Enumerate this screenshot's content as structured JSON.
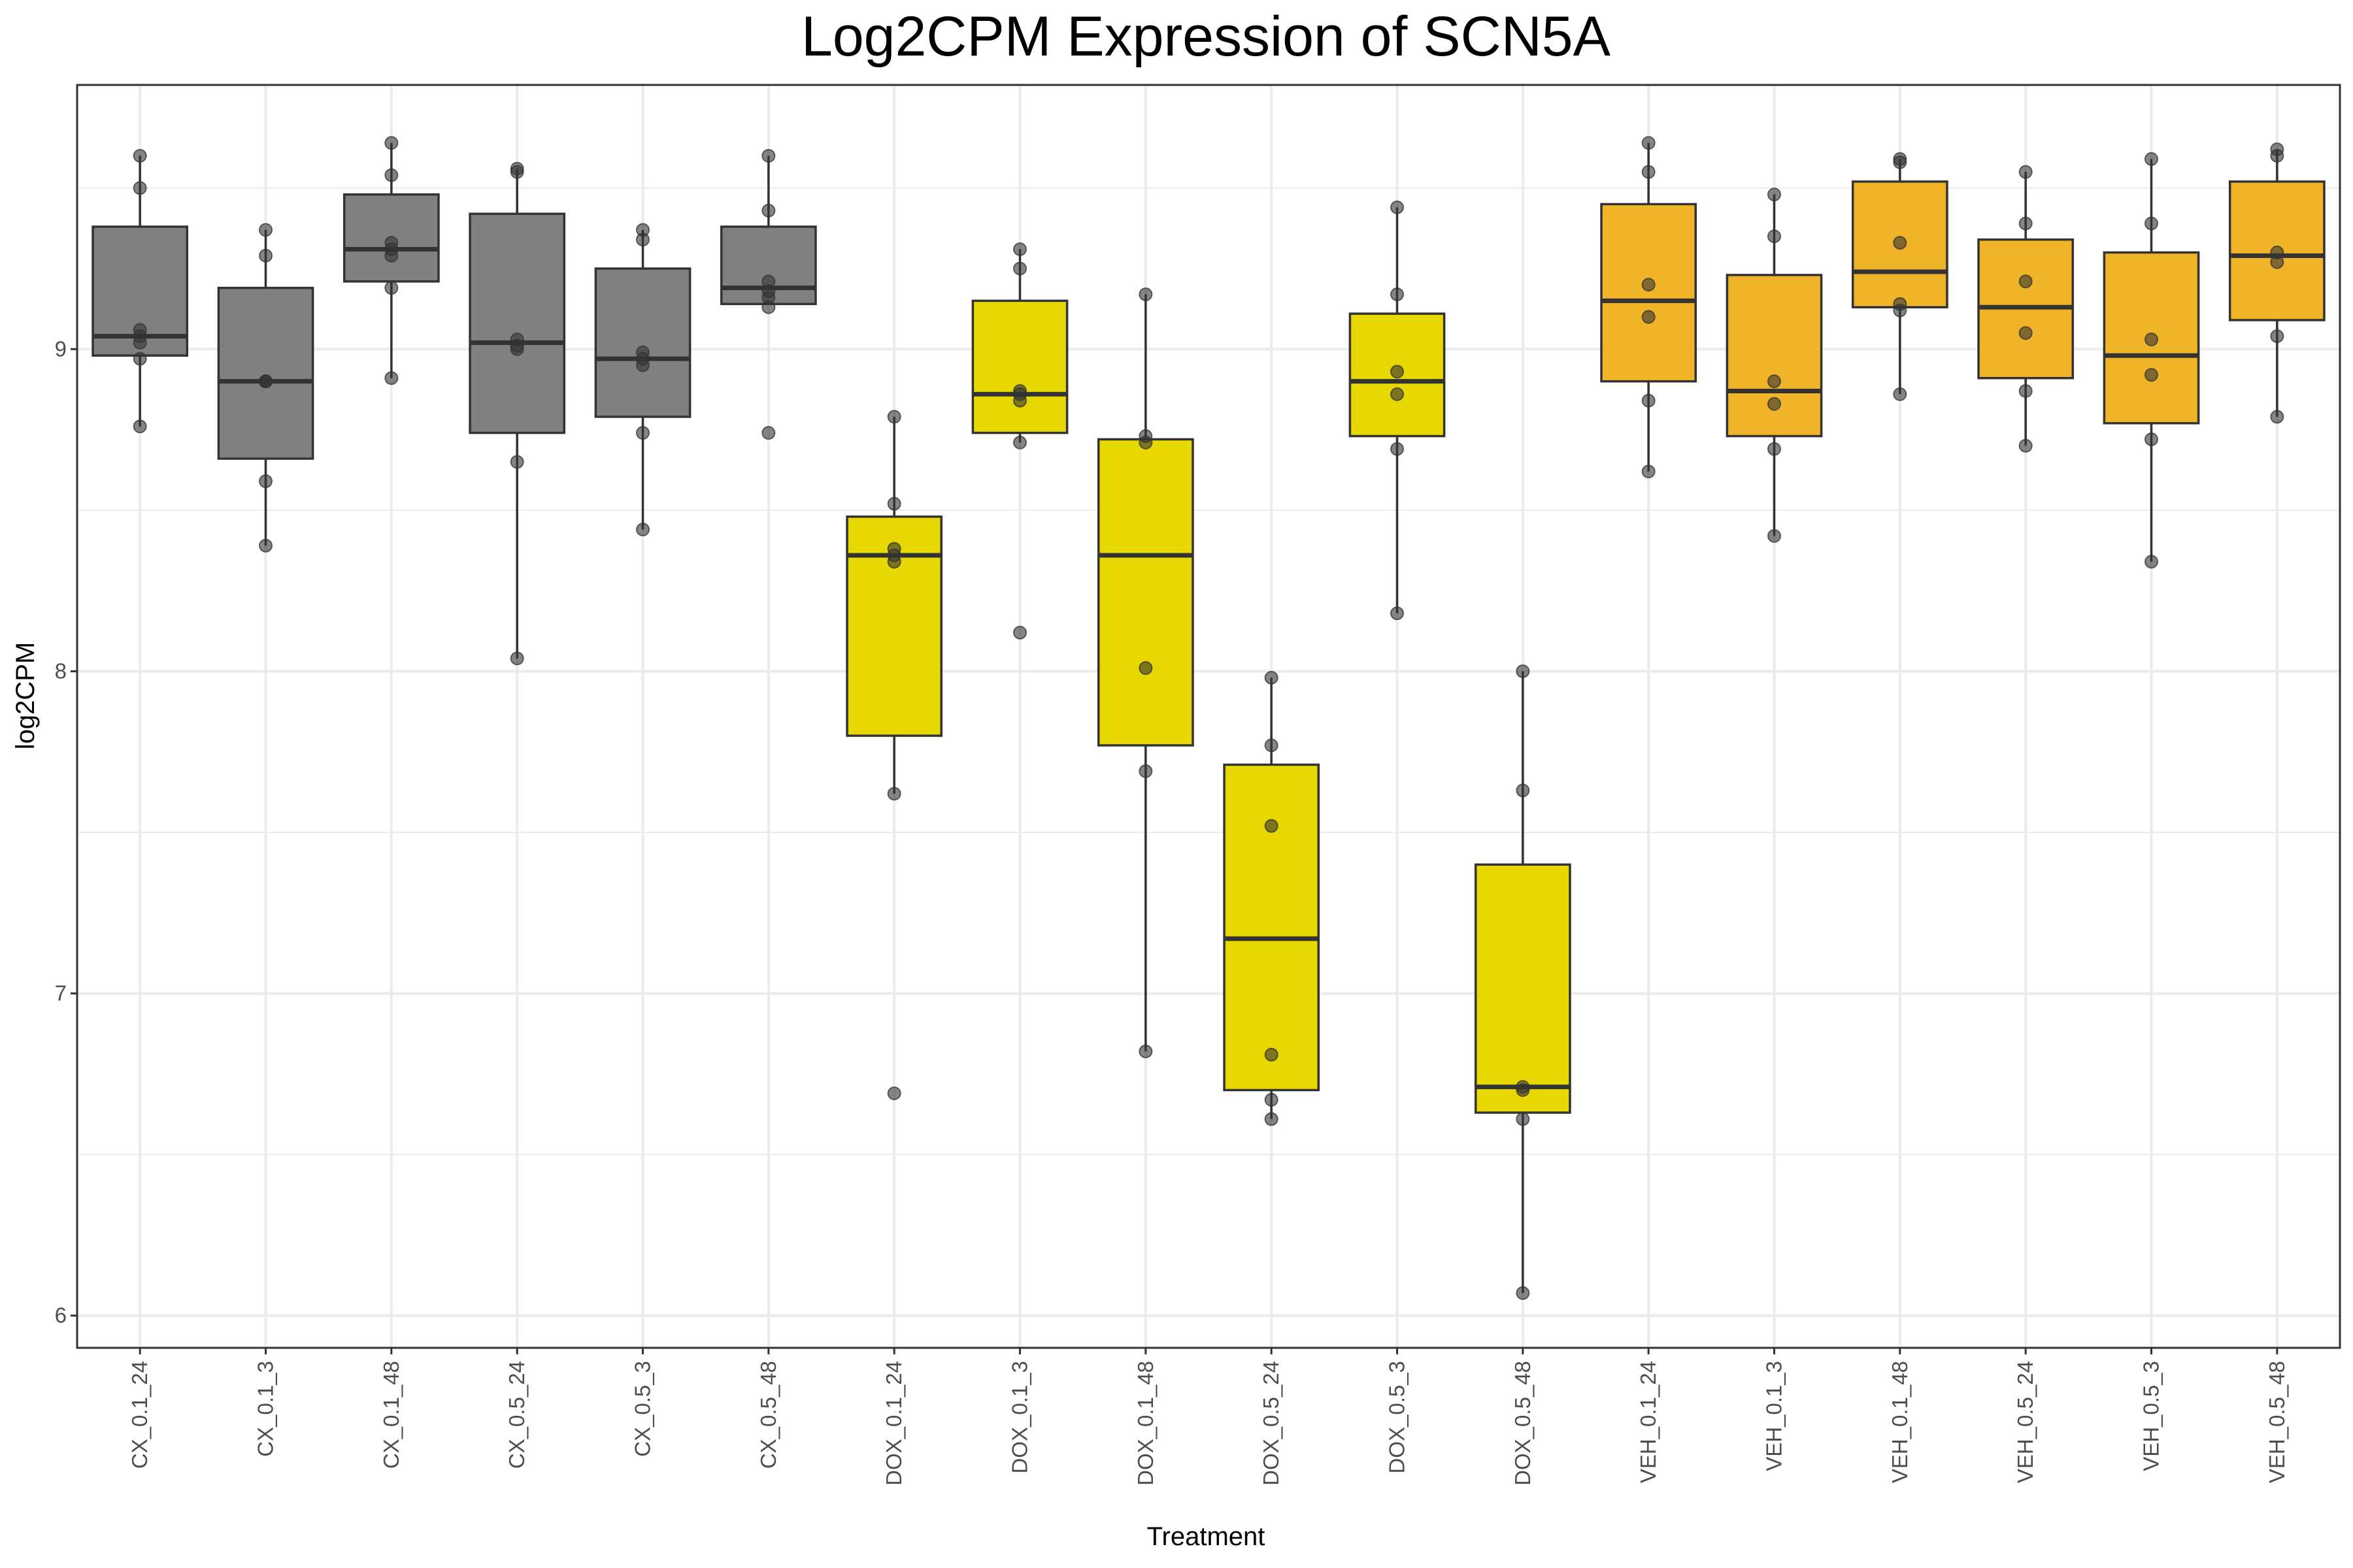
{
  "chart_data": {
    "type": "box",
    "title": "Log2CPM Expression of SCN5A",
    "xlabel": "Treatment",
    "ylabel": "log2CPM",
    "ylim": [
      5.9,
      9.82
    ],
    "yticks": [
      6,
      7,
      8,
      9
    ],
    "grid": true,
    "legend": "none",
    "colors": {
      "CX": "#808080",
      "DOX": "#e6d800",
      "VEH": "#f0b429",
      "box_line": "#333333",
      "point": "#333333",
      "grid": "#ebebeb",
      "panel_border": "#333333"
    },
    "categories": [
      {
        "label": "CX_0.1_24",
        "group": "CX",
        "q1": 8.98,
        "median": 9.04,
        "q3": 9.38,
        "whisker_low": 8.76,
        "whisker_high": 9.6,
        "points": [
          9.6,
          9.5,
          9.06,
          9.04,
          9.02,
          8.97,
          8.76
        ]
      },
      {
        "label": "CX_0.1_3",
        "group": "CX",
        "q1": 8.66,
        "median": 8.9,
        "q3": 9.19,
        "whisker_low": 8.39,
        "whisker_high": 9.37,
        "points": [
          9.37,
          9.29,
          8.9,
          8.9,
          8.9,
          8.59,
          8.39
        ]
      },
      {
        "label": "CX_0.1_48",
        "group": "CX",
        "q1": 9.21,
        "median": 9.31,
        "q3": 9.48,
        "whisker_low": 8.91,
        "whisker_high": 9.64,
        "points": [
          9.64,
          9.54,
          9.33,
          9.31,
          9.29,
          9.19,
          8.91
        ]
      },
      {
        "label": "CX_0.5_24",
        "group": "CX",
        "q1": 8.74,
        "median": 9.02,
        "q3": 9.42,
        "whisker_low": 8.04,
        "whisker_high": 9.56,
        "points": [
          9.56,
          9.55,
          9.03,
          9.01,
          9.0,
          8.65,
          8.04
        ]
      },
      {
        "label": "CX_0.5_3",
        "group": "CX",
        "q1": 8.79,
        "median": 8.97,
        "q3": 9.25,
        "whisker_low": 8.44,
        "whisker_high": 9.37,
        "points": [
          9.37,
          9.34,
          8.99,
          8.97,
          8.95,
          8.74,
          8.44
        ]
      },
      {
        "label": "CX_0.5_48",
        "group": "CX",
        "q1": 9.14,
        "median": 9.19,
        "q3": 9.38,
        "whisker_low": 9.14,
        "whisker_high": 9.6,
        "points": [
          9.6,
          9.43,
          9.21,
          9.18,
          9.16,
          9.13,
          8.74
        ]
      },
      {
        "label": "DOX_0.1_24",
        "group": "DOX",
        "q1": 7.8,
        "median": 8.36,
        "q3": 8.48,
        "whisker_low": 7.62,
        "whisker_high": 8.79,
        "points": [
          8.79,
          8.52,
          8.38,
          8.36,
          8.34,
          7.62,
          6.69
        ]
      },
      {
        "label": "DOX_0.1_3",
        "group": "DOX",
        "q1": 8.74,
        "median": 8.86,
        "q3": 9.15,
        "whisker_low": 8.71,
        "whisker_high": 9.31,
        "points": [
          9.31,
          9.25,
          8.87,
          8.86,
          8.84,
          8.71,
          8.12
        ]
      },
      {
        "label": "DOX_0.1_48",
        "group": "DOX",
        "q1": 7.77,
        "median": 8.36,
        "q3": 8.72,
        "whisker_low": 6.82,
        "whisker_high": 9.17,
        "points": [
          9.17,
          8.73,
          8.71,
          8.01,
          7.69,
          6.82
        ]
      },
      {
        "label": "DOX_0.5_24",
        "group": "DOX",
        "q1": 6.7,
        "median": 7.17,
        "q3": 7.71,
        "whisker_low": 6.61,
        "whisker_high": 7.98,
        "points": [
          7.98,
          7.77,
          7.52,
          6.81,
          6.67,
          6.61
        ]
      },
      {
        "label": "DOX_0.5_3",
        "group": "DOX",
        "q1": 8.73,
        "median": 8.9,
        "q3": 9.11,
        "whisker_low": 8.18,
        "whisker_high": 9.44,
        "points": [
          9.44,
          9.17,
          8.93,
          8.86,
          8.69,
          8.18
        ]
      },
      {
        "label": "DOX_0.5_48",
        "group": "DOX",
        "q1": 6.63,
        "median": 6.71,
        "q3": 7.4,
        "whisker_low": 6.07,
        "whisker_high": 8.0,
        "points": [
          8.0,
          7.63,
          6.71,
          6.7,
          6.61,
          6.07
        ]
      },
      {
        "label": "VEH_0.1_24",
        "group": "VEH",
        "q1": 8.9,
        "median": 9.15,
        "q3": 9.45,
        "whisker_low": 8.62,
        "whisker_high": 9.64,
        "points": [
          9.64,
          9.55,
          9.2,
          9.1,
          8.84,
          8.62
        ]
      },
      {
        "label": "VEH_0.1_3",
        "group": "VEH",
        "q1": 8.73,
        "median": 8.87,
        "q3": 9.23,
        "whisker_low": 8.42,
        "whisker_high": 9.48,
        "points": [
          9.48,
          9.35,
          8.9,
          8.83,
          8.69,
          8.42
        ]
      },
      {
        "label": "VEH_0.1_48",
        "group": "VEH",
        "q1": 9.13,
        "median": 9.24,
        "q3": 9.52,
        "whisker_low": 8.86,
        "whisker_high": 9.59,
        "points": [
          9.59,
          9.58,
          9.33,
          9.14,
          9.12,
          8.86
        ]
      },
      {
        "label": "VEH_0.5_24",
        "group": "VEH",
        "q1": 8.91,
        "median": 9.13,
        "q3": 9.34,
        "whisker_low": 8.7,
        "whisker_high": 9.55,
        "points": [
          9.55,
          9.39,
          9.21,
          9.05,
          8.87,
          8.7
        ]
      },
      {
        "label": "VEH_0.5_3",
        "group": "VEH",
        "q1": 8.77,
        "median": 8.98,
        "q3": 9.3,
        "whisker_low": 8.34,
        "whisker_high": 9.59,
        "points": [
          9.59,
          9.39,
          9.03,
          8.92,
          8.72,
          8.34
        ]
      },
      {
        "label": "VEH_0.5_48",
        "group": "VEH",
        "q1": 9.09,
        "median": 9.29,
        "q3": 9.52,
        "whisker_low": 8.79,
        "whisker_high": 9.62,
        "points": [
          9.62,
          9.6,
          9.3,
          9.27,
          9.04,
          8.79
        ]
      }
    ]
  }
}
